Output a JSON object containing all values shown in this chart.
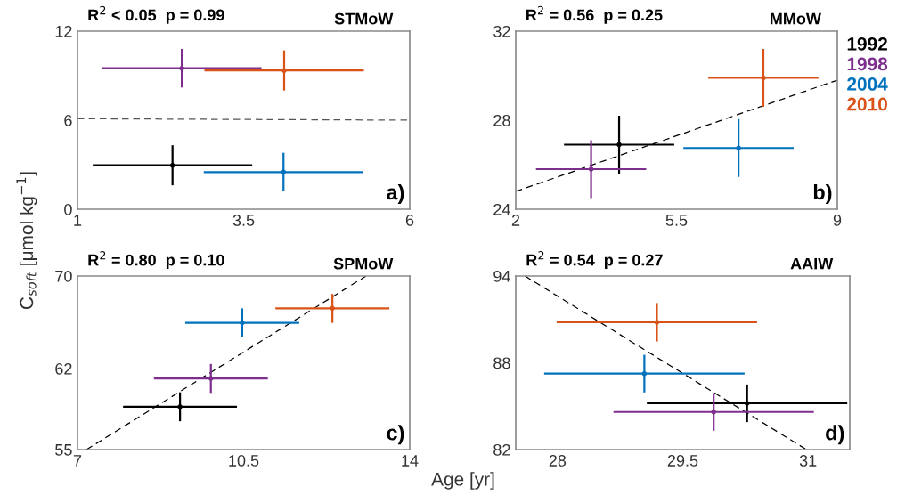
{
  "chart_data": [
    {
      "type": "scatter",
      "title": "R$^{2}$ < 0.05  p = 0.99",
      "subtitle": "STMoW",
      "ylabel": "C$_{soft}$ [μmol kg$^{−1}$]",
      "annotations": [
        "a)"
      ],
      "xlim": [
        1,
        6
      ],
      "ylim": [
        0,
        12
      ],
      "xticks": [
        1,
        3.5,
        6
      ],
      "yticks": [
        0,
        6,
        12
      ],
      "grid": false,
      "marker": "circle",
      "legend": false,
      "series": [
        {
          "color": "#000000",
          "x": [
            2.43
          ],
          "values": [
            2.96
          ],
          "xerrors": [
            1.2
          ],
          "errors": [
            1.35
          ]
        },
        {
          "color": "#7e2f8e",
          "x": [
            2.57
          ],
          "values": [
            9.5
          ],
          "xerrors": [
            1.2
          ],
          "errors": [
            1.3
          ]
        },
        {
          "color": "#0072bd",
          "x": [
            4.1
          ],
          "values": [
            2.5
          ],
          "xerrors": [
            1.2
          ],
          "errors": [
            1.3
          ]
        },
        {
          "color": "#d95319",
          "x": [
            4.11
          ],
          "values": [
            9.35
          ],
          "xerrors": [
            1.2
          ],
          "errors": [
            1.35
          ]
        },
        {
          "type": "line",
          "marker": "none",
          "line_style": "dashed",
          "color": "#555555",
          "x": [
            1,
            6
          ],
          "values": [
            6.1,
            6.0
          ]
        }
      ]
    },
    {
      "type": "scatter",
      "title": "R$^{2}$ = 0.56  p = 0.25",
      "subtitle": "MMoW",
      "annotations": [
        "b)"
      ],
      "xlim": [
        2,
        9
      ],
      "ylim": [
        24,
        32
      ],
      "xticks": [
        2,
        5.5,
        9
      ],
      "yticks": [
        24,
        28,
        32
      ],
      "grid": false,
      "marker": "circle",
      "legend": "right",
      "series": [
        {
          "name": "1992",
          "color": "#000000",
          "x": [
            4.25
          ],
          "values": [
            26.9
          ],
          "xerrors": [
            1.2
          ],
          "errors": [
            1.3
          ]
        },
        {
          "name": "1998",
          "color": "#7e2f8e",
          "x": [
            3.64
          ],
          "values": [
            25.8
          ],
          "xerrors": [
            1.2
          ],
          "errors": [
            1.3
          ]
        },
        {
          "name": "2004",
          "color": "#0072bd",
          "x": [
            6.85
          ],
          "values": [
            26.75
          ],
          "xerrors": [
            1.2
          ],
          "errors": [
            1.3
          ]
        },
        {
          "name": "2010",
          "color": "#d95319",
          "x": [
            7.39
          ],
          "values": [
            29.9
          ],
          "xerrors": [
            1.2
          ],
          "errors": [
            1.3
          ]
        },
        {
          "type": "line",
          "marker": "none",
          "line_style": "dashed",
          "color": "#000000",
          "x": [
            2,
            9
          ],
          "values": [
            24.8,
            29.8
          ]
        }
      ]
    },
    {
      "type": "scatter",
      "title": "R$^{2}$ = 0.80  p = 0.10",
      "subtitle": "SPMoW",
      "xlabel": "Age [yr]",
      "annotations": [
        "c)"
      ],
      "xlim": [
        7,
        14
      ],
      "ylim": [
        55,
        70
      ],
      "xticks": [
        7,
        10.5,
        14
      ],
      "yticks": [
        55,
        62,
        70
      ],
      "grid": false,
      "marker": "circle",
      "legend": false,
      "series": [
        {
          "color": "#000000",
          "x": [
            9.16
          ],
          "values": [
            58.7
          ],
          "xerrors": [
            1.2
          ],
          "errors": [
            1.25
          ]
        },
        {
          "color": "#7e2f8e",
          "x": [
            9.81
          ],
          "values": [
            61.15
          ],
          "xerrors": [
            1.2
          ],
          "errors": [
            1.25
          ]
        },
        {
          "color": "#0072bd",
          "x": [
            10.47
          ],
          "values": [
            65.95
          ],
          "xerrors": [
            1.2
          ],
          "errors": [
            1.25
          ]
        },
        {
          "color": "#d95319",
          "x": [
            12.37
          ],
          "values": [
            67.2
          ],
          "xerrors": [
            1.2
          ],
          "errors": [
            1.25
          ]
        },
        {
          "type": "line",
          "marker": "none",
          "line_style": "dashed",
          "color": "#000000",
          "x": [
            7.19,
            13.08
          ],
          "values": [
            55,
            70
          ]
        }
      ]
    },
    {
      "type": "scatter",
      "title": "R$^{2}$ = 0.54  p = 0.27",
      "subtitle": "AAIW",
      "annotations": [
        "d)"
      ],
      "xlim": [
        27.5,
        31.5
      ],
      "ylim": [
        82,
        94
      ],
      "xticks": [
        28,
        29.5,
        31
      ],
      "yticks": [
        82,
        88,
        94
      ],
      "grid": false,
      "marker": "circle",
      "legend": false,
      "series": [
        {
          "color": "#000000",
          "x": [
            30.27
          ],
          "values": [
            85.2
          ],
          "xerrors": [
            1.2
          ],
          "errors": [
            1.3
          ]
        },
        {
          "color": "#7e2f8e",
          "x": [
            29.87
          ],
          "values": [
            84.6
          ],
          "xerrors": [
            1.2
          ],
          "errors": [
            1.3
          ]
        },
        {
          "color": "#0072bd",
          "x": [
            29.04
          ],
          "values": [
            87.25
          ],
          "xerrors": [
            1.2
          ],
          "errors": [
            1.3
          ]
        },
        {
          "color": "#d95319",
          "x": [
            29.19
          ],
          "values": [
            90.8
          ],
          "xerrors": [
            1.2
          ],
          "errors": [
            1.33
          ]
        },
        {
          "type": "line",
          "marker": "none",
          "line_style": "dashed",
          "color": "#000000",
          "x": [
            27.61,
            30.98
          ],
          "values": [
            94,
            82
          ]
        }
      ]
    }
  ]
}
